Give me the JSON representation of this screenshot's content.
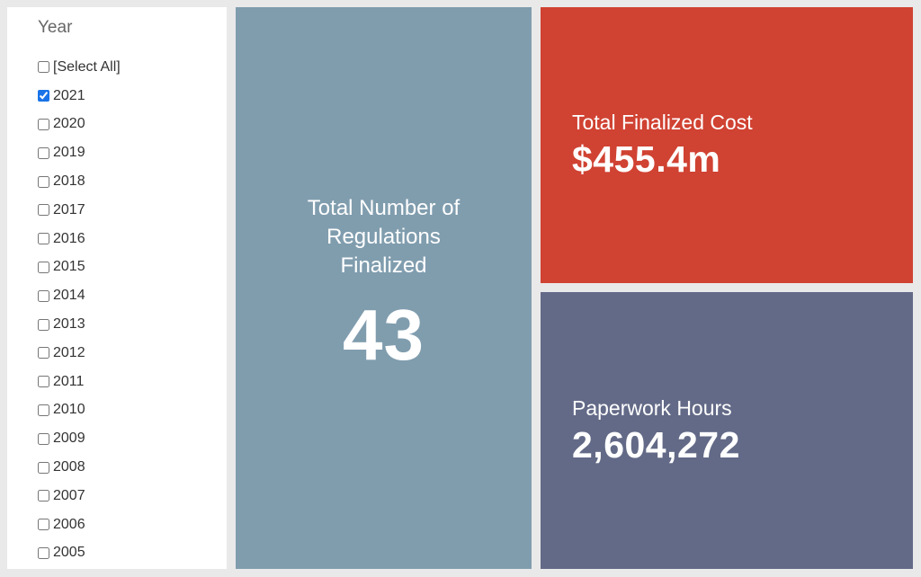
{
  "filter": {
    "title": "Year",
    "options": [
      {
        "label": "[Select All]",
        "checked": false
      },
      {
        "label": "2021",
        "checked": true
      },
      {
        "label": "2020",
        "checked": false
      },
      {
        "label": "2019",
        "checked": false
      },
      {
        "label": "2018",
        "checked": false
      },
      {
        "label": "2017",
        "checked": false
      },
      {
        "label": "2016",
        "checked": false
      },
      {
        "label": "2015",
        "checked": false
      },
      {
        "label": "2014",
        "checked": false
      },
      {
        "label": "2013",
        "checked": false
      },
      {
        "label": "2012",
        "checked": false
      },
      {
        "label": "2011",
        "checked": false
      },
      {
        "label": "2010",
        "checked": false
      },
      {
        "label": "2009",
        "checked": false
      },
      {
        "label": "2008",
        "checked": false
      },
      {
        "label": "2007",
        "checked": false
      },
      {
        "label": "2006",
        "checked": false
      },
      {
        "label": "2005",
        "checked": false
      }
    ]
  },
  "cards": {
    "regulations": {
      "label": "Total Number of Regulations Finalized",
      "value": "43",
      "color": "#809dae"
    },
    "cost": {
      "label": "Total Finalized Cost",
      "value": "$455.4m",
      "color": "#d04232"
    },
    "hours": {
      "label": "Paperwork Hours",
      "value": "2,604,272",
      "color": "#636a87"
    }
  },
  "colors": {
    "background": "#e9e9e9",
    "panel": "#ffffff",
    "checkbox_accent": "#1a73e8"
  }
}
